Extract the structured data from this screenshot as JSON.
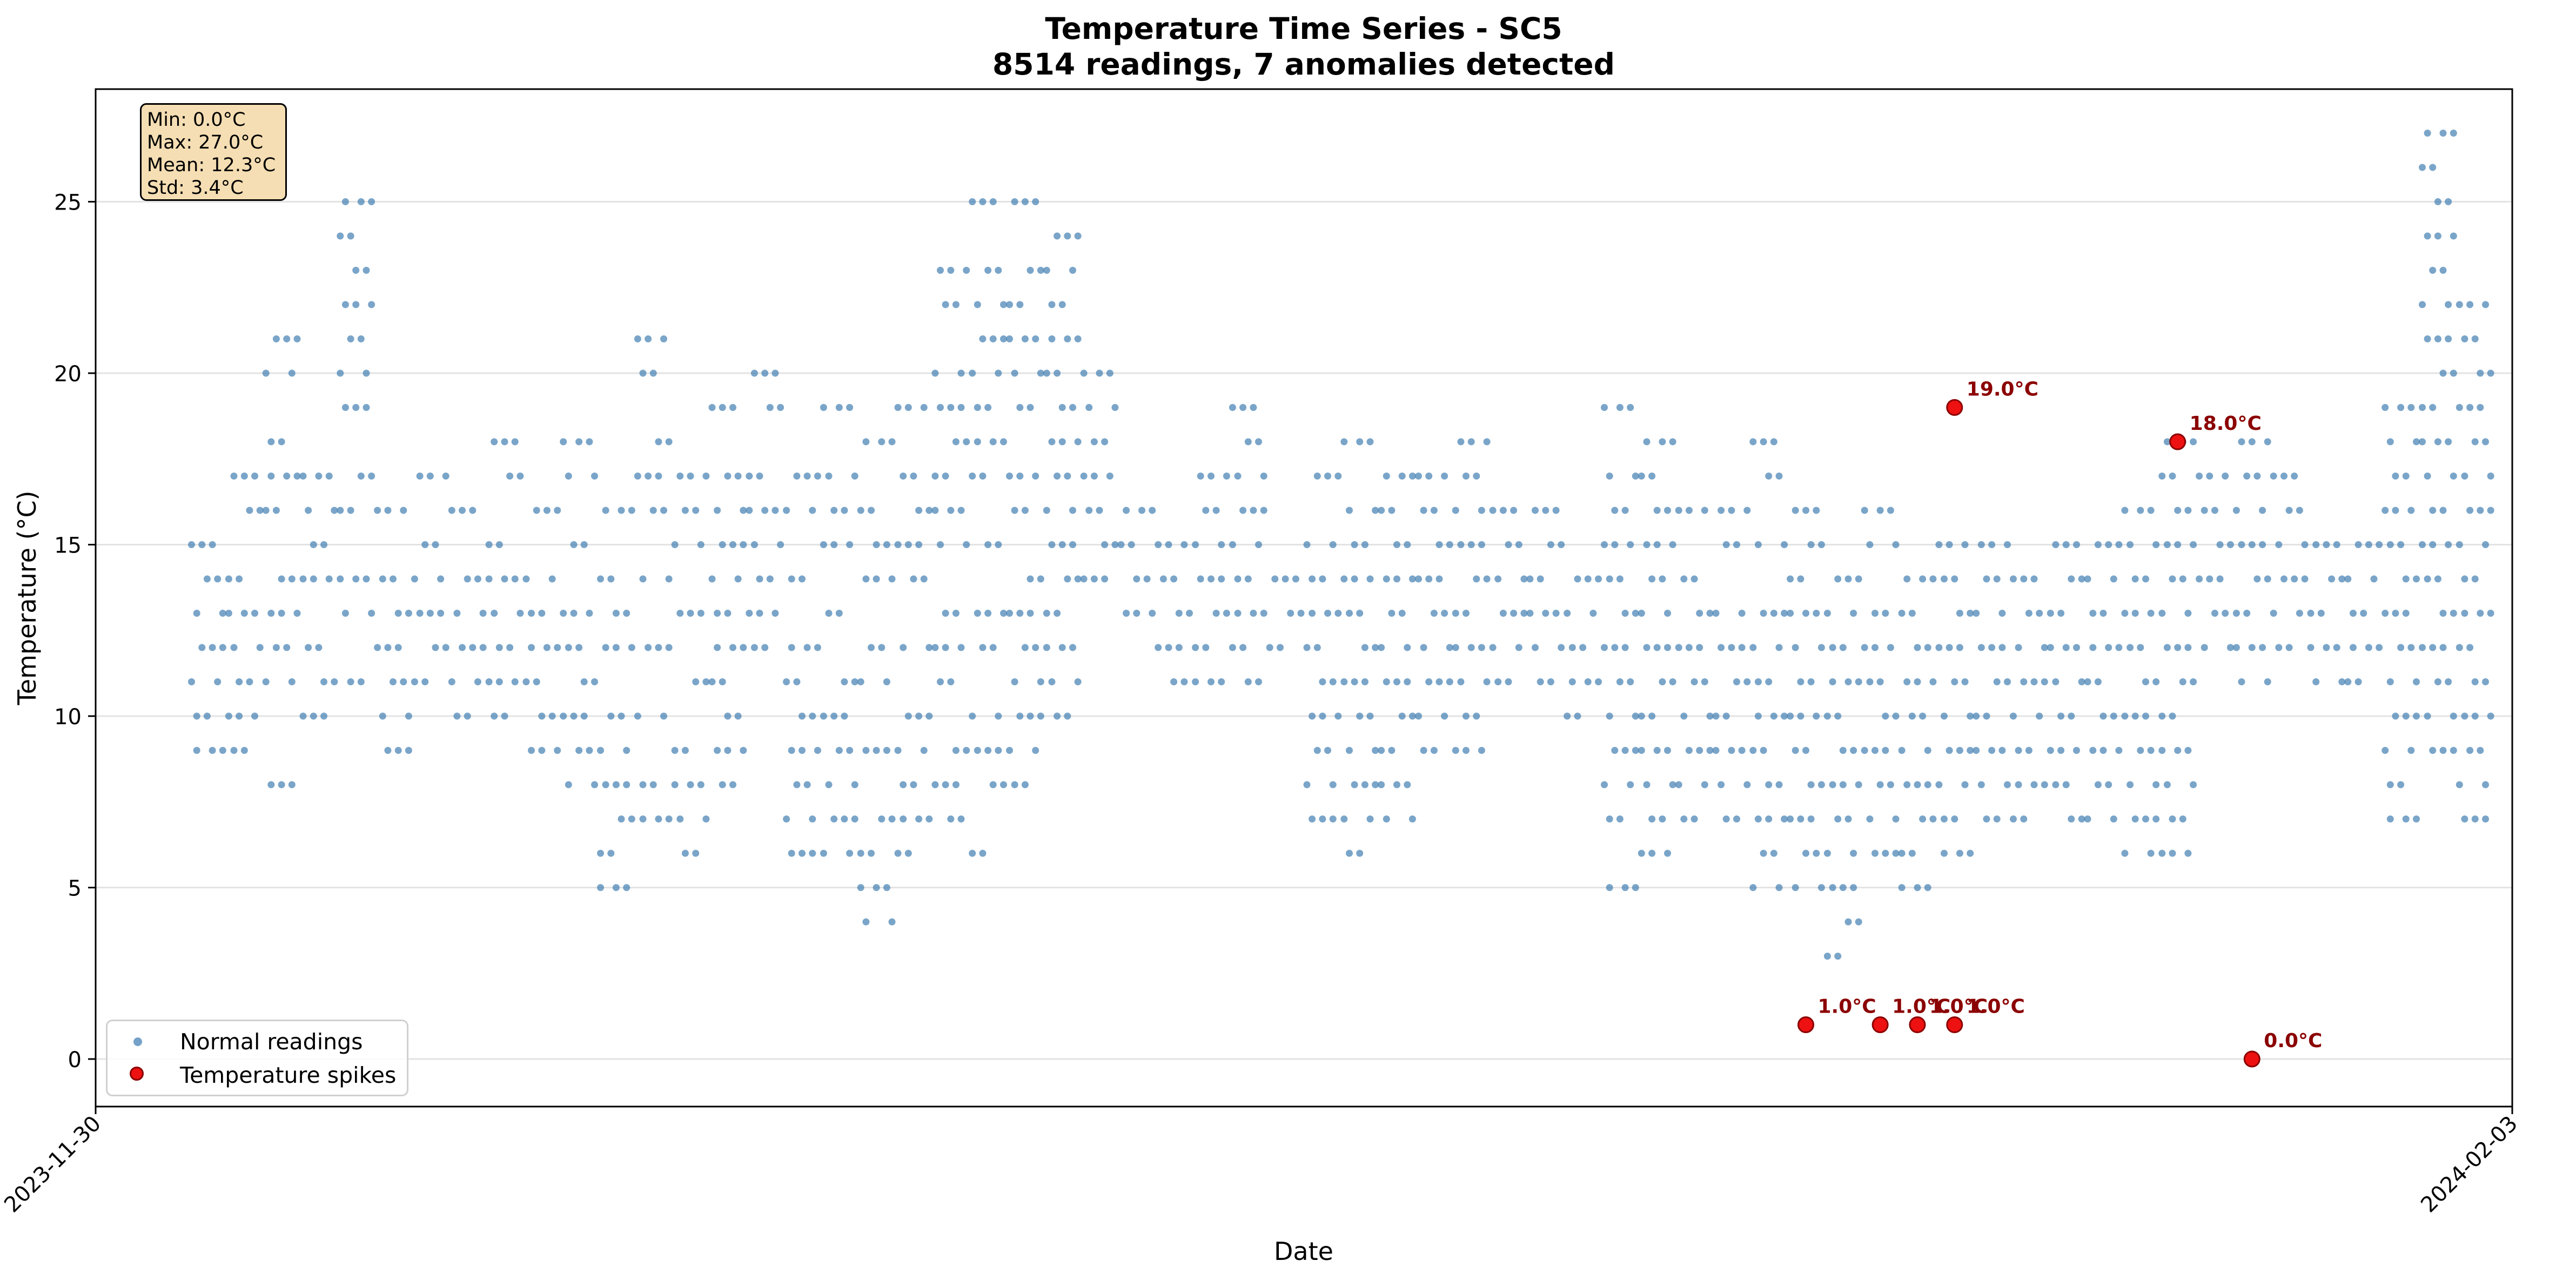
{
  "chart_data": {
    "type": "scatter",
    "title": "Temperature Time Series - SC5",
    "subtitle": "8514 readings, 7 anomalies detected",
    "xlabel": "Date",
    "ylabel": "Temperature (°C)",
    "x_range": [
      "2023-11-30",
      "2024-02-03"
    ],
    "x_ticks": [
      "2023-11-30",
      "2024-02-03"
    ],
    "ylim": [
      -1.3,
      28.4
    ],
    "y_ticks": [
      0,
      5,
      10,
      15,
      20,
      25
    ],
    "grid": "horizontal",
    "legend_position": "lower-left",
    "stats": [
      "Min: 0.0°C",
      "Max: 27.0°C",
      "Mean: 12.3°C",
      "Std: 3.4°C"
    ],
    "series": [
      {
        "name": "Normal readings",
        "color": "#4682b4",
        "marker": "small-circle",
        "clusters": [
          {
            "x": "2023-12-03",
            "values": [
              15,
              14,
              13,
              12,
              11,
              10,
              9
            ]
          },
          {
            "x": "2023-12-04",
            "values": [
              17,
              16,
              14,
              13,
              12,
              11,
              10,
              9
            ]
          },
          {
            "x": "2023-12-05",
            "values": [
              21,
              20,
              18,
              17,
              16,
              14,
              13,
              12,
              11,
              8
            ]
          },
          {
            "x": "2023-12-06",
            "values": [
              17,
              16,
              15,
              14,
              12,
              11,
              10
            ]
          },
          {
            "x": "2023-12-07",
            "values": [
              25,
              24,
              23,
              22,
              21,
              20,
              19,
              17,
              16,
              14,
              13,
              11
            ]
          },
          {
            "x": "2023-12-08",
            "values": [
              16,
              14,
              13,
              12,
              11,
              10,
              9
            ]
          },
          {
            "x": "2023-12-09",
            "values": [
              17,
              15,
              14,
              13,
              12,
              11
            ]
          },
          {
            "x": "2023-12-10",
            "values": [
              16,
              14,
              13,
              12,
              11,
              10
            ]
          },
          {
            "x": "2023-12-11",
            "values": [
              18,
              17,
              15,
              14,
              13,
              12,
              11,
              10
            ]
          },
          {
            "x": "2023-12-12",
            "values": [
              16,
              14,
              13,
              12,
              11,
              10,
              9
            ]
          },
          {
            "x": "2023-12-13",
            "values": [
              18,
              17,
              15,
              13,
              12,
              11,
              10,
              9,
              8
            ]
          },
          {
            "x": "2023-12-14",
            "values": [
              16,
              14,
              13,
              12,
              10,
              9,
              8,
              7,
              6,
              5
            ]
          },
          {
            "x": "2023-12-15",
            "values": [
              21,
              20,
              18,
              17,
              16,
              14,
              12,
              10,
              8,
              7
            ]
          },
          {
            "x": "2023-12-16",
            "values": [
              17,
              16,
              15,
              13,
              11,
              9,
              8,
              7,
              6
            ]
          },
          {
            "x": "2023-12-17",
            "values": [
              19,
              17,
              16,
              15,
              14,
              13,
              12,
              11,
              10,
              9,
              8
            ]
          },
          {
            "x": "2023-12-18",
            "values": [
              20,
              19,
              17,
              16,
              15,
              14,
              13,
              12
            ]
          },
          {
            "x": "2023-12-19",
            "values": [
              17,
              16,
              14,
              12,
              11,
              10,
              9,
              8,
              7,
              6
            ]
          },
          {
            "x": "2023-12-20",
            "values": [
              19,
              17,
              16,
              15,
              13,
              11,
              10,
              9,
              8,
              7,
              6
            ]
          },
          {
            "x": "2023-12-21",
            "values": [
              18,
              16,
              15,
              14,
              12,
              11,
              9,
              7,
              6,
              5,
              4
            ]
          },
          {
            "x": "2023-12-22",
            "values": [
              19,
              17,
              16,
              15,
              14,
              12,
              10,
              9,
              8,
              7,
              6
            ]
          },
          {
            "x": "2023-12-23",
            "values": [
              23,
              22,
              20,
              19,
              18,
              17,
              16,
              15,
              13,
              12,
              11,
              9,
              8,
              7
            ]
          },
          {
            "x": "2023-12-24",
            "values": [
              25,
              23,
              22,
              21,
              20,
              19,
              18,
              17,
              15,
              13,
              12,
              10,
              9,
              8,
              6
            ]
          },
          {
            "x": "2023-12-25",
            "values": [
              25,
              23,
              22,
              21,
              20,
              19,
              17,
              16,
              14,
              13,
              12,
              11,
              10,
              9,
              8
            ]
          },
          {
            "x": "2023-12-26",
            "values": [
              24,
              23,
              22,
              21,
              20,
              19,
              18,
              17,
              16,
              15,
              14,
              13,
              12,
              11,
              10
            ]
          },
          {
            "x": "2023-12-27",
            "values": [
              20,
              19,
              18,
              17,
              16,
              15,
              14
            ]
          },
          {
            "x": "2023-12-28",
            "values": [
              16,
              15,
              14,
              13
            ]
          },
          {
            "x": "2023-12-29",
            "values": [
              15,
              14,
              13,
              12,
              11
            ]
          },
          {
            "x": "2023-12-30",
            "values": [
              17,
              16,
              15,
              14,
              13,
              12,
              11
            ]
          },
          {
            "x": "2023-12-31",
            "values": [
              19,
              18,
              17,
              16,
              15,
              14,
              13,
              12,
              11
            ]
          },
          {
            "x": "2024-01-01",
            "values": [
              14,
              13,
              12
            ]
          },
          {
            "x": "2024-01-02",
            "values": [
              17,
              15,
              14,
              13,
              12,
              11,
              10,
              9,
              8,
              7
            ]
          },
          {
            "x": "2024-01-03",
            "values": [
              18,
              16,
              15,
              14,
              13,
              12,
              11,
              10,
              9,
              8,
              7,
              6
            ]
          },
          {
            "x": "2024-01-04",
            "values": [
              17,
              16,
              15,
              14,
              13,
              12,
              11,
              10,
              9,
              8,
              7
            ]
          },
          {
            "x": "2024-01-05",
            "values": [
              17,
              16,
              15,
              14,
              13,
              12,
              11,
              10,
              9
            ]
          },
          {
            "x": "2024-01-06",
            "values": [
              18,
              17,
              16,
              15,
              14,
              13,
              12,
              11,
              10,
              9
            ]
          },
          {
            "x": "2024-01-07",
            "values": [
              16,
              15,
              14,
              13,
              12,
              11
            ]
          },
          {
            "x": "2024-01-08",
            "values": [
              16,
              15,
              14,
              13,
              12,
              11
            ]
          },
          {
            "x": "2024-01-09",
            "values": [
              14,
              13,
              12,
              11,
              10
            ]
          },
          {
            "x": "2024-01-10",
            "values": [
              19,
              17,
              16,
              15,
              14,
              13,
              12,
              11,
              10,
              9,
              8,
              7,
              5
            ]
          },
          {
            "x": "2024-01-11",
            "values": [
              18,
              17,
              16,
              15,
              14,
              13,
              12,
              11,
              10,
              9,
              8,
              7,
              6
            ]
          },
          {
            "x": "2024-01-12",
            "values": [
              16,
              14,
              13,
              12,
              11,
              10,
              9,
              8,
              7
            ]
          },
          {
            "x": "2024-01-13",
            "values": [
              16,
              15,
              13,
              12,
              11,
              10,
              9,
              8,
              7
            ]
          },
          {
            "x": "2024-01-14",
            "values": [
              18,
              17,
              15,
              13,
              12,
              11,
              10,
              9,
              8,
              7,
              6,
              5
            ]
          },
          {
            "x": "2024-01-15",
            "values": [
              16,
              15,
              14,
              13,
              12,
              11,
              10,
              9,
              8,
              7,
              6,
              5
            ]
          },
          {
            "x": "2024-01-16",
            "values": [
              14,
              13,
              12,
              11,
              10,
              9,
              8,
              7,
              6,
              5,
              4,
              3
            ]
          },
          {
            "x": "2024-01-17",
            "values": [
              16,
              15,
              13,
              12,
              11,
              10,
              9,
              8,
              7,
              6
            ]
          },
          {
            "x": "2024-01-18",
            "values": [
              14,
              13,
              12,
              11,
              10,
              9,
              8,
              7,
              6,
              5
            ]
          },
          {
            "x": "2024-01-19",
            "values": [
              15,
              14,
              13,
              12,
              11,
              10,
              9,
              8,
              7,
              6
            ]
          },
          {
            "x": "2024-01-20",
            "values": [
              15,
              14,
              13,
              12,
              11,
              10,
              9,
              8,
              7
            ]
          },
          {
            "x": "2024-01-21",
            "values": [
              14,
              13,
              12,
              11,
              10,
              9,
              8,
              7
            ]
          },
          {
            "x": "2024-01-22",
            "values": [
              15,
              14,
              13,
              12,
              11,
              10,
              9,
              8,
              7
            ]
          },
          {
            "x": "2024-01-23",
            "values": [
              15,
              14,
              13,
              12,
              11,
              10,
              9,
              8,
              7
            ]
          },
          {
            "x": "2024-01-24",
            "values": [
              16,
              15,
              14,
              13,
              12,
              11,
              10,
              9,
              8,
              7,
              6
            ]
          },
          {
            "x": "2024-01-25",
            "values": [
              18,
              17,
              16,
              15,
              14,
              13,
              12,
              11,
              10,
              9,
              8,
              7,
              6
            ]
          },
          {
            "x": "2024-01-26",
            "values": [
              17,
              16,
              15,
              14,
              13,
              12
            ]
          },
          {
            "x": "2024-01-27",
            "values": [
              18,
              17,
              16,
              15,
              14,
              13,
              12,
              11
            ]
          },
          {
            "x": "2024-01-28",
            "values": [
              17,
              16,
              15,
              14,
              13,
              12
            ]
          },
          {
            "x": "2024-01-29",
            "values": [
              15,
              14,
              13,
              12,
              11
            ]
          },
          {
            "x": "2024-01-30",
            "values": [
              15,
              14,
              13,
              12,
              11
            ]
          },
          {
            "x": "2024-01-31",
            "values": [
              19,
              18,
              17,
              16,
              15,
              14,
              13,
              12,
              11,
              10,
              9,
              8,
              7
            ]
          },
          {
            "x": "2024-02-01",
            "values": [
              27,
              26,
              25,
              24,
              23,
              22,
              21,
              20,
              19,
              18,
              17,
              16,
              15,
              14,
              13,
              12,
              11,
              10,
              9
            ]
          },
          {
            "x": "2024-02-02",
            "values": [
              22,
              21,
              20,
              19,
              18,
              17,
              16,
              15,
              14,
              13,
              12,
              11,
              10,
              9,
              8,
              7
            ]
          }
        ]
      },
      {
        "name": "Temperature spikes",
        "color": "#ee1111",
        "marker": "circle",
        "points": [
          {
            "x": "2024-01-15",
            "y": 1.0,
            "label": "1.0°C"
          },
          {
            "x": "2024-01-17",
            "y": 1.0,
            "label": "1.0°C"
          },
          {
            "x": "2024-01-18",
            "y": 1.0,
            "label": "1.0°C"
          },
          {
            "x": "2024-01-19",
            "y": 19.0,
            "label": "19.0°C"
          },
          {
            "x": "2024-01-19",
            "y": 1.0,
            "label": "1.0°C"
          },
          {
            "x": "2024-01-25",
            "y": 18.0,
            "label": "18.0°C"
          },
          {
            "x": "2024-01-27",
            "y": 0.0,
            "label": "0.0°C"
          }
        ]
      }
    ]
  }
}
